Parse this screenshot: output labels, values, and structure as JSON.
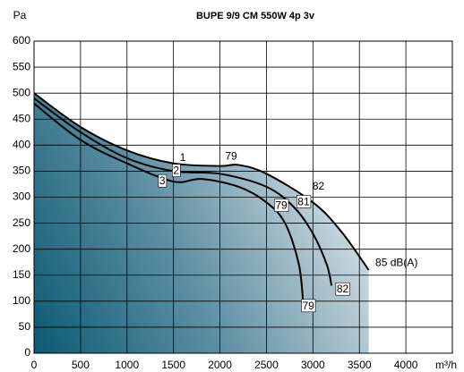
{
  "chart_data": {
    "type": "line",
    "title": "BUPE 9/9 CM 550W 4p 3v",
    "y_label": "Pa",
    "x_label": "m³/h",
    "xlim": [
      0,
      4500
    ],
    "ylim": [
      0,
      600
    ],
    "xticks": [
      0,
      500,
      1000,
      1500,
      2000,
      2500,
      3000,
      3500,
      4000
    ],
    "yticks": [
      0,
      50,
      100,
      150,
      200,
      250,
      300,
      350,
      400,
      450,
      500,
      550,
      600
    ],
    "grid": true,
    "series": [
      {
        "color": "#000000",
        "x": [
          0,
          500,
          1000,
          1500,
          2000,
          2200,
          2500,
          3000,
          3300,
          3600
        ],
        "values": [
          500,
          435,
          390,
          365,
          360,
          362,
          345,
          290,
          235,
          160
        ]
      },
      {
        "color": "#000000",
        "x": [
          0,
          500,
          1000,
          1500,
          2000,
          2500,
          2800,
          3000,
          3150,
          3200
        ],
        "values": [
          490,
          425,
          375,
          350,
          345,
          320,
          280,
          230,
          170,
          130
        ]
      },
      {
        "color": "#000000",
        "x": [
          0,
          500,
          1000,
          1500,
          1800,
          2200,
          2500,
          2700,
          2850,
          2900
        ],
        "values": [
          480,
          410,
          365,
          330,
          335,
          320,
          290,
          250,
          170,
          85
        ]
      }
    ],
    "annotations": [
      {
        "text": "1",
        "x": 1600,
        "y": 375,
        "boxed": false
      },
      {
        "text": "2",
        "x": 1530,
        "y": 350,
        "boxed": true
      },
      {
        "text": "3",
        "x": 1380,
        "y": 330,
        "boxed": true
      },
      {
        "text": "79",
        "x": 2120,
        "y": 378,
        "boxed": false
      },
      {
        "text": "82",
        "x": 3060,
        "y": 320,
        "boxed": false
      },
      {
        "text": "79",
        "x": 2660,
        "y": 283,
        "boxed": true
      },
      {
        "text": "81",
        "x": 2900,
        "y": 290,
        "boxed": true
      },
      {
        "text": "85 dB(A)",
        "x": 3900,
        "y": 173,
        "boxed": false
      },
      {
        "text": "82",
        "x": 3320,
        "y": 122,
        "boxed": true
      },
      {
        "text": "79",
        "x": 2950,
        "y": 90,
        "boxed": true
      }
    ]
  }
}
